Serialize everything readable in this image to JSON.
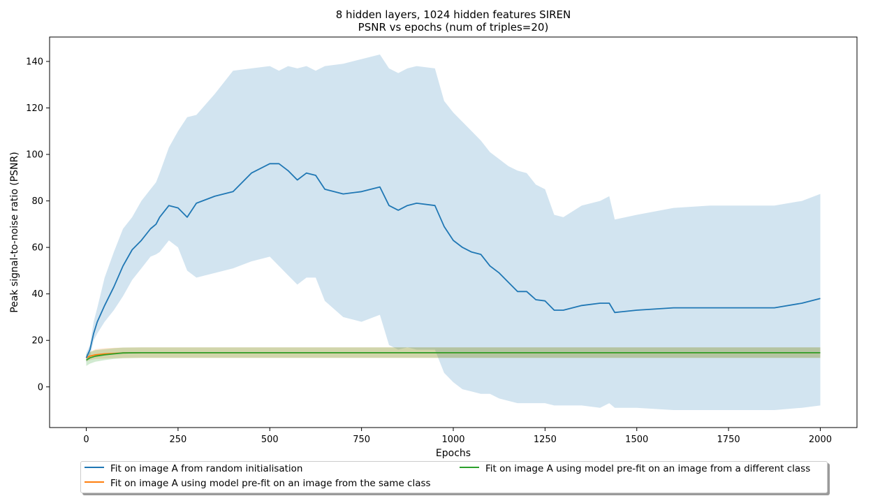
{
  "chart_data": {
    "type": "line",
    "title": "8 hidden layers, 1024 hidden features SIREN",
    "subtitle": "PSNR vs epochs (num of triples=20)",
    "xlabel": "Epochs",
    "ylabel": "Peak signal-to-noise ratio (PSNR)",
    "xlim": [
      -100,
      2100
    ],
    "ylim": [
      -17.5,
      150.5
    ],
    "xticks": [
      0,
      250,
      500,
      750,
      1000,
      1250,
      1500,
      1750,
      2000
    ],
    "yticks": [
      0,
      20,
      40,
      60,
      80,
      100,
      120,
      140
    ],
    "grid": false,
    "legend_position": "below",
    "series": [
      {
        "name": "Fit on image A from random initialisation",
        "color": "#1f77b4",
        "band_color": "#1f77b4",
        "x": [
          0,
          10,
          20,
          30,
          50,
          75,
          100,
          125,
          150,
          175,
          190,
          200,
          225,
          250,
          275,
          300,
          350,
          400,
          450,
          500,
          525,
          550,
          575,
          600,
          625,
          650,
          700,
          750,
          800,
          825,
          850,
          875,
          900,
          950,
          975,
          1000,
          1025,
          1050,
          1075,
          1100,
          1125,
          1150,
          1175,
          1200,
          1225,
          1250,
          1275,
          1300,
          1350,
          1400,
          1425,
          1440,
          1500,
          1600,
          1700,
          1800,
          1875,
          1950,
          2000
        ],
        "mean": [
          12.5,
          16,
          23,
          28,
          35,
          43,
          52,
          59,
          63,
          68,
          70,
          73,
          78,
          77,
          73,
          79,
          82,
          84,
          92,
          96,
          96,
          93,
          89,
          92,
          91,
          85,
          83,
          84,
          86,
          78,
          76,
          78,
          79,
          78,
          69,
          63,
          60,
          58,
          57,
          52,
          49,
          45,
          41,
          41,
          37.5,
          37,
          33,
          33,
          35,
          36,
          36,
          32,
          33,
          34,
          34,
          34,
          34,
          36,
          38
        ],
        "upper": [
          14.5,
          18,
          28,
          34,
          47,
          58,
          68,
          73,
          80,
          85,
          88,
          92,
          103,
          110,
          116,
          117,
          126,
          136,
          137,
          138,
          136,
          138,
          137,
          138,
          136,
          138,
          139,
          141,
          143,
          137,
          135,
          137,
          138,
          137,
          123,
          118,
          114,
          110,
          106,
          101,
          98,
          95,
          93,
          92,
          87,
          85,
          74,
          73,
          78,
          80,
          82,
          72,
          74,
          77,
          78,
          78,
          78,
          80,
          83
        ],
        "lower": [
          10.5,
          13,
          20,
          23,
          28,
          33,
          39,
          46,
          51,
          56,
          57,
          58,
          63,
          60,
          50,
          47,
          49,
          51,
          54,
          56,
          52,
          48,
          44,
          47,
          47,
          37,
          30,
          28,
          31,
          18,
          16,
          17,
          16,
          16,
          6,
          2,
          -1,
          -2,
          -3,
          -3,
          -5,
          -6,
          -7,
          -7,
          -7,
          -7,
          -8,
          -8,
          -8,
          -9,
          -7,
          -9,
          -9,
          -10,
          -10,
          -10,
          -10,
          -9,
          -8
        ]
      },
      {
        "name": "Fit on image A using model pre-fit on an image from the same class",
        "color": "#ff7f0e",
        "band_color": "#ff7f0e",
        "x": [
          0,
          10,
          25,
          50,
          75,
          100,
          150,
          200,
          300,
          500,
          750,
          1000,
          1250,
          1500,
          1750,
          2000
        ],
        "mean": [
          12.5,
          13.2,
          13.8,
          14.2,
          14.4,
          14.6,
          14.7,
          14.7,
          14.7,
          14.7,
          14.7,
          14.7,
          14.7,
          14.7,
          14.7,
          14.7
        ],
        "upper": [
          13.5,
          15,
          16.2,
          16.6,
          16.8,
          16.9,
          17,
          17,
          17,
          17,
          17,
          17,
          17,
          17,
          17,
          17
        ],
        "lower": [
          11,
          11.5,
          12,
          12.2,
          12.3,
          12.4,
          12.5,
          12.5,
          12.5,
          12.5,
          12.5,
          12.5,
          12.5,
          12.5,
          12.5,
          12.5
        ]
      },
      {
        "name": "Fit on image A using model pre-fit on an image from a different class",
        "color": "#2ca02c",
        "band_color": "#2ca02c",
        "x": [
          0,
          10,
          25,
          50,
          75,
          100,
          150,
          200,
          300,
          500,
          750,
          1000,
          1250,
          1500,
          1750,
          2000
        ],
        "mean": [
          11.5,
          12.5,
          13.2,
          13.8,
          14.2,
          14.6,
          14.7,
          14.7,
          14.7,
          14.7,
          14.7,
          14.7,
          14.7,
          14.7,
          14.7,
          14.7
        ],
        "upper": [
          14,
          15,
          15.8,
          16.2,
          16.6,
          16.9,
          17,
          17,
          17,
          17,
          17,
          17,
          17,
          17,
          17,
          17
        ],
        "lower": [
          9,
          10,
          10.8,
          11.5,
          12,
          12.3,
          12.5,
          12.5,
          12.5,
          12.5,
          12.5,
          12.5,
          12.5,
          12.5,
          12.5,
          12.5
        ]
      }
    ]
  }
}
